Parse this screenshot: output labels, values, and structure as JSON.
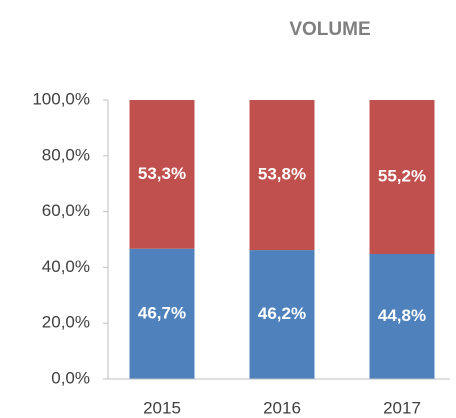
{
  "chart_data": {
    "type": "stacked_bar",
    "title": "VOLUME",
    "categories": [
      "2015",
      "2016",
      "2017"
    ],
    "series": [
      {
        "color": "#4f81bd",
        "values": [
          46.7,
          46.2,
          44.8
        ],
        "value_labels": [
          "46,7%",
          "46,2%",
          "44,8%"
        ]
      },
      {
        "color": "#c0504d",
        "values": [
          53.3,
          53.8,
          55.2
        ],
        "value_labels": [
          "53,3%",
          "53,8%",
          "55,2%"
        ]
      }
    ],
    "ylim": [
      0,
      100
    ],
    "yticks": [
      {
        "value": 0,
        "label": "0,0%"
      },
      {
        "value": 20,
        "label": "20,0%"
      },
      {
        "value": 40,
        "label": "40,0%"
      },
      {
        "value": 60,
        "label": "60,0%"
      },
      {
        "value": 80,
        "label": "80,0%"
      },
      {
        "value": 100,
        "label": "100,0%"
      }
    ]
  }
}
